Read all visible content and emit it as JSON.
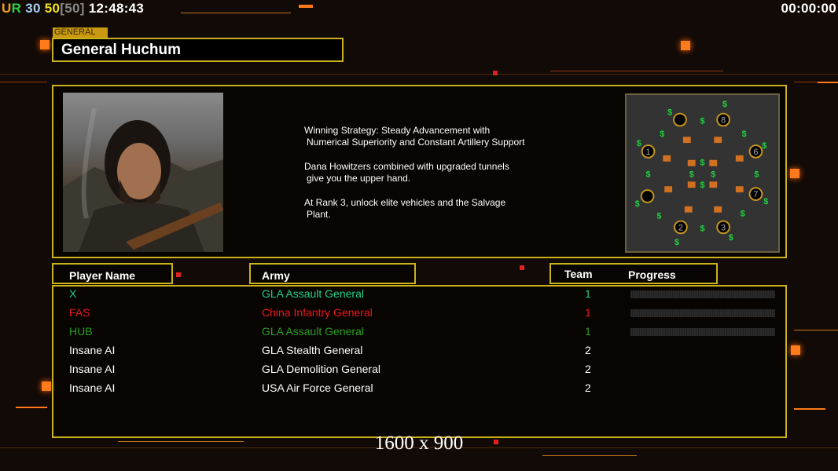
{
  "hud": {
    "ur_u": "U",
    "ur_r": "R",
    "v1": "30",
    "v2": "50",
    "v3": "[50]",
    "clock": "12:48:43",
    "timer": "00:00:00"
  },
  "general": {
    "tab_label": "GENERAL",
    "name": "General Huchum"
  },
  "description": [
    "Winning Strategy: Steady Advancement with",
    "Numerical Superiority and Constant Artillery Support",
    "",
    "Dana Howitzers combined with upgraded tunnels",
    "give you the upper hand.",
    "",
    "At Rank 3, unlock elite vehicles and the Salvage",
    "Plant."
  ],
  "minimap": {
    "start_positions": [
      "1",
      "2",
      "3",
      "6",
      "7",
      "8"
    ]
  },
  "table": {
    "headers": {
      "player": "Player Name",
      "army": "Army",
      "team": "Team",
      "progress": "Progress"
    },
    "rows": [
      {
        "player": "X",
        "army": "GLA Assault General",
        "team": "1",
        "color": "#1fd08a",
        "progress": 0
      },
      {
        "player": "FAS",
        "army": "China Infantry General",
        "team": "1",
        "color": "#e81818",
        "progress": 0
      },
      {
        "player": "HUB",
        "army": "GLA Assault General",
        "team": "1",
        "color": "#2aa020",
        "progress": 0
      },
      {
        "player": "Insane AI",
        "army": "GLA Stealth General",
        "team": "2",
        "color": "#ffffff"
      },
      {
        "player": "Insane AI",
        "army": "GLA Demolition General",
        "team": "2",
        "color": "#ffffff"
      },
      {
        "player": "Insane AI",
        "army": "USA Air Force General",
        "team": "2",
        "color": "#ffffff"
      }
    ]
  },
  "resolution": "1600 x 900",
  "colors": {
    "accent": "#c9b21a",
    "orange": "#ff7a1a"
  }
}
